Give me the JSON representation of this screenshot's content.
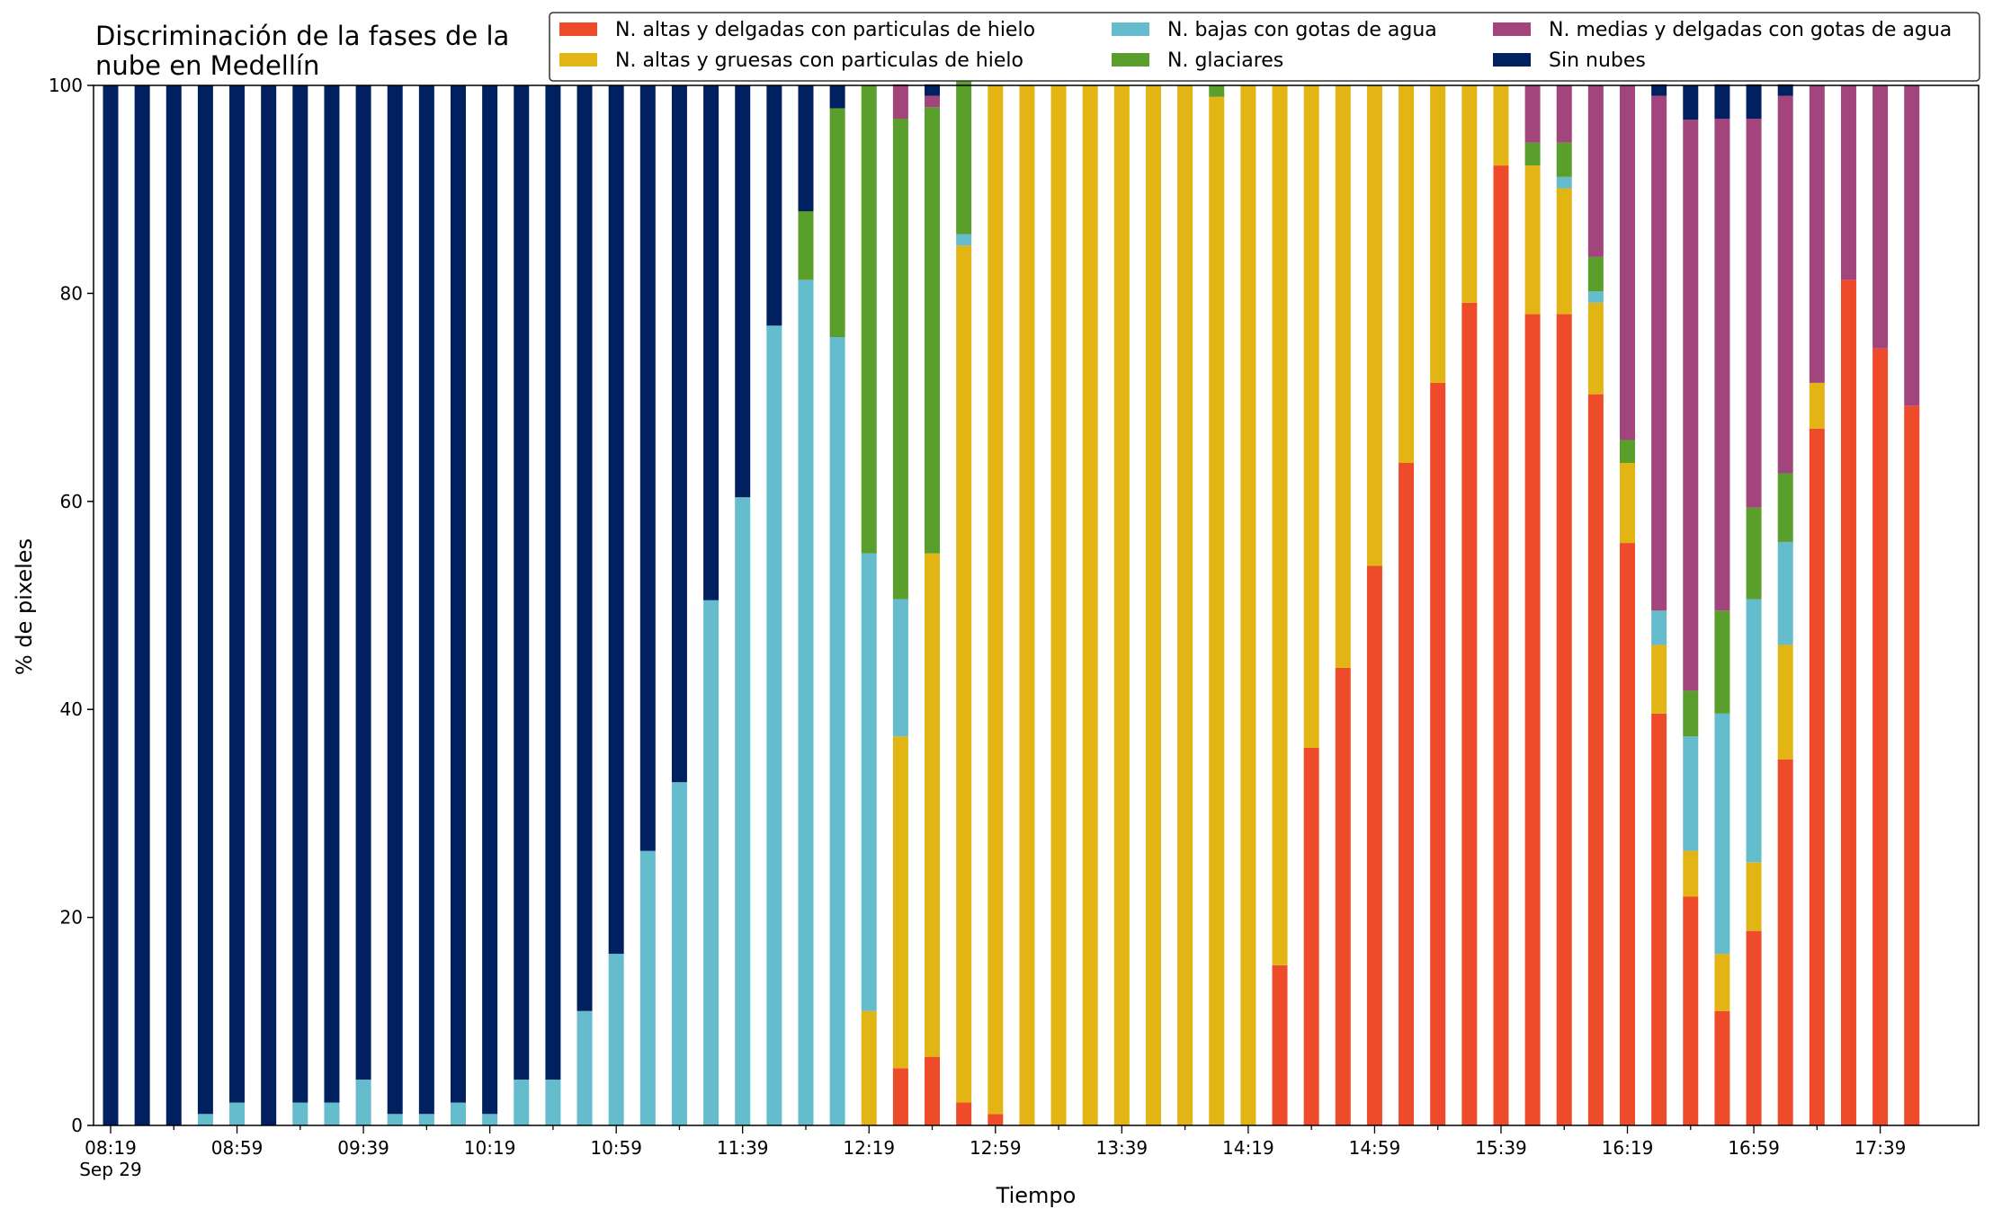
{
  "chart_data": {
    "type": "bar",
    "stacked": true,
    "title_lines": [
      "Discriminación de la fases de la",
      "nube en Medellín"
    ],
    "xlabel": "Tiempo",
    "ylabel": "% de pixeles",
    "ylim": [
      0,
      100
    ],
    "yticks": [
      0,
      20,
      40,
      60,
      80,
      100
    ],
    "grid": false,
    "legend_position": "top-right",
    "x": [
      "08:19",
      "08:29",
      "08:39",
      "08:49",
      "08:59",
      "09:09",
      "09:19",
      "09:29",
      "09:39",
      "09:49",
      "09:59",
      "10:09",
      "10:19",
      "10:29",
      "10:39",
      "10:49",
      "10:59",
      "11:09",
      "11:19",
      "11:29",
      "11:39",
      "11:49",
      "11:59",
      "12:09",
      "12:19",
      "12:29",
      "12:39",
      "12:49",
      "12:59",
      "13:09",
      "13:19",
      "13:29",
      "13:39",
      "13:49",
      "13:59",
      "14:09",
      "14:19",
      "14:29",
      "14:39",
      "14:49",
      "14:59",
      "15:09",
      "15:19",
      "15:29",
      "15:39",
      "15:49",
      "15:59",
      "16:09",
      "16:19",
      "16:29",
      "16:39",
      "16:49",
      "16:59",
      "17:09",
      "17:19",
      "17:29",
      "17:39",
      "17:49"
    ],
    "x_tick_labels": [
      {
        "label": "08:19",
        "sublabel": "Sep 29",
        "index": 0
      },
      {
        "label": "08:59",
        "index": 4
      },
      {
        "label": "09:39",
        "index": 8
      },
      {
        "label": "10:19",
        "index": 12
      },
      {
        "label": "10:59",
        "index": 16
      },
      {
        "label": "11:39",
        "index": 20
      },
      {
        "label": "12:19",
        "index": 24
      },
      {
        "label": "12:59",
        "index": 28
      },
      {
        "label": "13:39",
        "index": 32
      },
      {
        "label": "14:19",
        "index": 36
      },
      {
        "label": "14:59",
        "index": 40
      },
      {
        "label": "15:39",
        "index": 44
      },
      {
        "label": "16:19",
        "index": 48
      },
      {
        "label": "16:59",
        "index": 52
      },
      {
        "label": "17:39",
        "index": 56
      }
    ],
    "series": [
      {
        "name": "N. altas y delgadas con particulas de hielo",
        "color": "#EE4B2B",
        "values": [
          0,
          0,
          0,
          0,
          0,
          0,
          0,
          0,
          0,
          0,
          0,
          0,
          0,
          0,
          0,
          0,
          0,
          0,
          0,
          0,
          0,
          0,
          0,
          0,
          0,
          5.5,
          6.6,
          2.2,
          1.1,
          0,
          0,
          0,
          0,
          0,
          0,
          0,
          0,
          15.4,
          36.3,
          44,
          53.8,
          63.7,
          71.4,
          79.1,
          92.3,
          78,
          78,
          70.3,
          56,
          39.6,
          22,
          11,
          18.7,
          35.2,
          67,
          81.3,
          74.7,
          69.2
        ]
      },
      {
        "name": "N. altas y gruesas con particulas de hielo",
        "color": "#E3B514",
        "values": [
          0,
          0,
          0,
          0,
          0,
          0,
          0,
          0,
          0,
          0,
          0,
          0,
          0,
          0,
          0,
          0,
          0,
          0,
          0,
          0,
          0,
          0,
          0,
          0,
          11,
          31.9,
          48.4,
          82.4,
          98.9,
          100,
          100,
          100,
          100,
          100,
          100,
          98.9,
          100,
          84.6,
          63.7,
          56,
          46.2,
          36.3,
          28.6,
          20.9,
          7.7,
          14.3,
          12.1,
          8.8,
          7.7,
          6.6,
          4.4,
          5.5,
          6.6,
          11,
          4.4,
          0,
          0,
          0
        ]
      },
      {
        "name": "N. bajas con gotas de agua",
        "color": "#64BCCC",
        "values": [
          0,
          0,
          0,
          1.1,
          2.2,
          0,
          2.2,
          2.2,
          4.4,
          1.1,
          1.1,
          2.2,
          1.1,
          4.4,
          4.4,
          11,
          16.5,
          26.4,
          33,
          50.5,
          60.4,
          76.9,
          81.3,
          75.8,
          44,
          13.2,
          0,
          1.1,
          0,
          0,
          0,
          0,
          0,
          0,
          0,
          0,
          0,
          0,
          0,
          0,
          0,
          0,
          0,
          0,
          0,
          0,
          1.1,
          1.1,
          0,
          3.3,
          11,
          23.1,
          25.3,
          9.9,
          0,
          0,
          0,
          0
        ]
      },
      {
        "name": "N. glaciares",
        "color": "#5A9E2B",
        "values": [
          0,
          0,
          0,
          0,
          0,
          0,
          0,
          0,
          0,
          0,
          0,
          0,
          0,
          0,
          0,
          0,
          0,
          0,
          0,
          0,
          0,
          0,
          6.6,
          22,
          45,
          46.2,
          42.9,
          15.4,
          0,
          0,
          0,
          0,
          0,
          0,
          0,
          1.1,
          0,
          0,
          0,
          0,
          0,
          0,
          0,
          0,
          0,
          2.2,
          3.3,
          3.3,
          2.2,
          0,
          4.4,
          9.9,
          8.8,
          6.6,
          0,
          0,
          0,
          0
        ]
      },
      {
        "name": "N. medias y delgadas con gotas de agua",
        "color": "#A2457D",
        "values": [
          0,
          0,
          0,
          0,
          0,
          0,
          0,
          0,
          0,
          0,
          0,
          0,
          0,
          0,
          0,
          0,
          0,
          0,
          0,
          0,
          0,
          0,
          0,
          0,
          0,
          3.3,
          1.1,
          0,
          0,
          0,
          0,
          0,
          0,
          0,
          0,
          0,
          0,
          0,
          0,
          0,
          0,
          0,
          0,
          0,
          0,
          5.5,
          5.5,
          16.5,
          34.1,
          49.5,
          54.9,
          47.3,
          37.4,
          36.3,
          28.6,
          18.7,
          25.3,
          30.8
        ]
      },
      {
        "name": "Sin nubes",
        "color": "#00205F",
        "values": [
          100,
          100,
          100,
          98.9,
          97.8,
          100,
          97.8,
          97.8,
          95.6,
          98.9,
          98.9,
          97.8,
          98.9,
          95.6,
          95.6,
          89,
          83.5,
          73.6,
          67,
          49.5,
          39.6,
          23.1,
          12.1,
          2.2,
          0,
          0,
          1.1,
          0,
          0,
          0,
          0,
          0,
          0,
          0,
          0,
          0,
          0,
          0,
          0,
          0,
          0,
          0,
          0,
          0,
          0,
          0,
          0,
          0,
          0,
          1.1,
          3.3,
          3.3,
          3.3,
          1.1,
          0,
          0,
          0,
          0
        ]
      }
    ]
  }
}
